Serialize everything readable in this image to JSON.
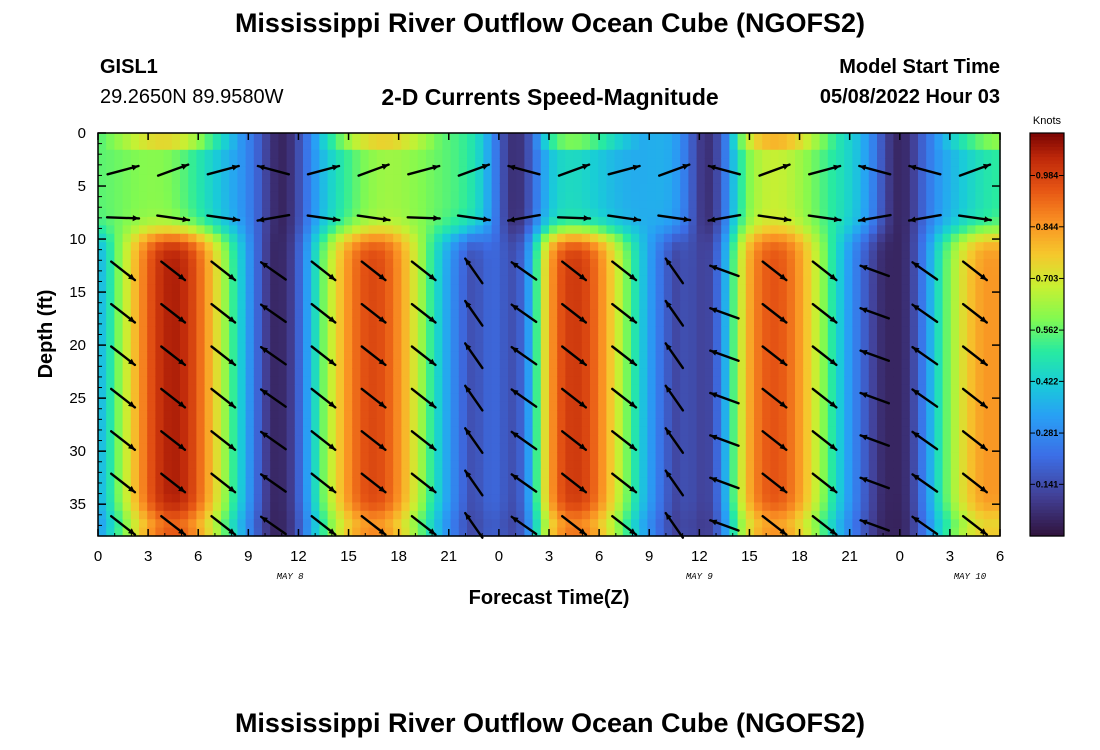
{
  "header": {
    "title": "Mississippi River Outflow Ocean Cube (NGOFS2)",
    "station": "GISL1",
    "coordinates": "29.2650N  89.9580W",
    "product": "2-D Currents Speed-Magnitude",
    "model_start_label": "Model Start Time",
    "model_start_value": "05/08/2022 Hour 03"
  },
  "footer": {
    "title": "Mississippi River Outflow Ocean Cube (NGOFS2)"
  },
  "chart_data": {
    "type": "heatmap",
    "title": "2-D Currents Speed-Magnitude",
    "xlabel": "Forecast Time(Z)",
    "ylabel": "Depth (ft)",
    "xlim_hours": [
      0,
      54
    ],
    "ylim": [
      38,
      0
    ],
    "x_tick_hours": [
      0,
      3,
      6,
      9,
      12,
      15,
      18,
      21,
      24,
      27,
      30,
      33,
      36,
      39,
      42,
      45,
      48,
      51,
      54
    ],
    "x_tick_labels": [
      "0",
      "3",
      "6",
      "9",
      "12",
      "15",
      "18",
      "21",
      "0",
      "3",
      "6",
      "9",
      "12",
      "15",
      "18",
      "21",
      "0",
      "3",
      "6"
    ],
    "y_ticks": [
      0,
      5,
      10,
      15,
      20,
      25,
      30,
      35
    ],
    "day_labels": [
      {
        "hour": 11.5,
        "text": "MAY 8"
      },
      {
        "hour": 36,
        "text": "MAY 9"
      },
      {
        "hour": 52.2,
        "text": "MAY 10"
      }
    ],
    "colorbar": {
      "unit": "Knots",
      "min": 0.0,
      "max": 1.1,
      "ticks": [
        0.141,
        0.281,
        0.422,
        0.562,
        0.703,
        0.844,
        0.984
      ]
    },
    "surface_layer": {
      "depth_range_ft": [
        0,
        8
      ],
      "description": "weaker, variable flow"
    },
    "lower_layer_peaks": [
      {
        "hour": 4.5,
        "speed_knots": 1.05
      },
      {
        "hour": 16.5,
        "speed_knots": 0.97
      },
      {
        "hour": 28.5,
        "speed_knots": 1.0
      },
      {
        "hour": 40.5,
        "speed_knots": 0.95
      },
      {
        "hour": 53.5,
        "speed_knots": 0.85
      }
    ],
    "slack_minima_hours": [
      11,
      25,
      36.5,
      48
    ]
  }
}
